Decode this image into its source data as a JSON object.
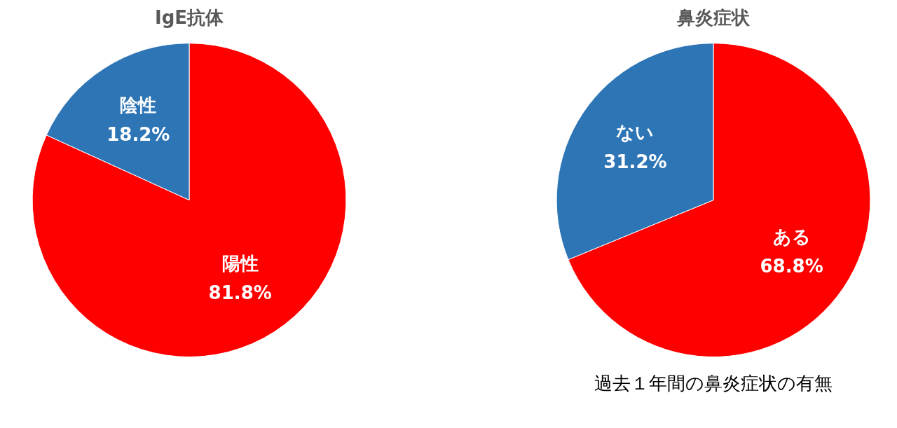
{
  "chart_data": [
    {
      "type": "pie",
      "title": "IgE抗体",
      "categories": [
        "陽性",
        "陰性"
      ],
      "values": [
        81.8,
        18.2
      ],
      "colors": [
        "#ff0000",
        "#2e75b6"
      ],
      "value_labels": [
        "81.8%",
        "18.2%"
      ],
      "legend": false
    },
    {
      "type": "pie",
      "title": "鼻炎症状",
      "categories": [
        "ある",
        "ない"
      ],
      "values": [
        68.8,
        31.2
      ],
      "colors": [
        "#ff0000",
        "#2e75b6"
      ],
      "value_labels": [
        "68.8%",
        "31.2%"
      ],
      "legend": false,
      "annotations": [
        "過去１年間の鼻炎症状の有無"
      ]
    }
  ]
}
